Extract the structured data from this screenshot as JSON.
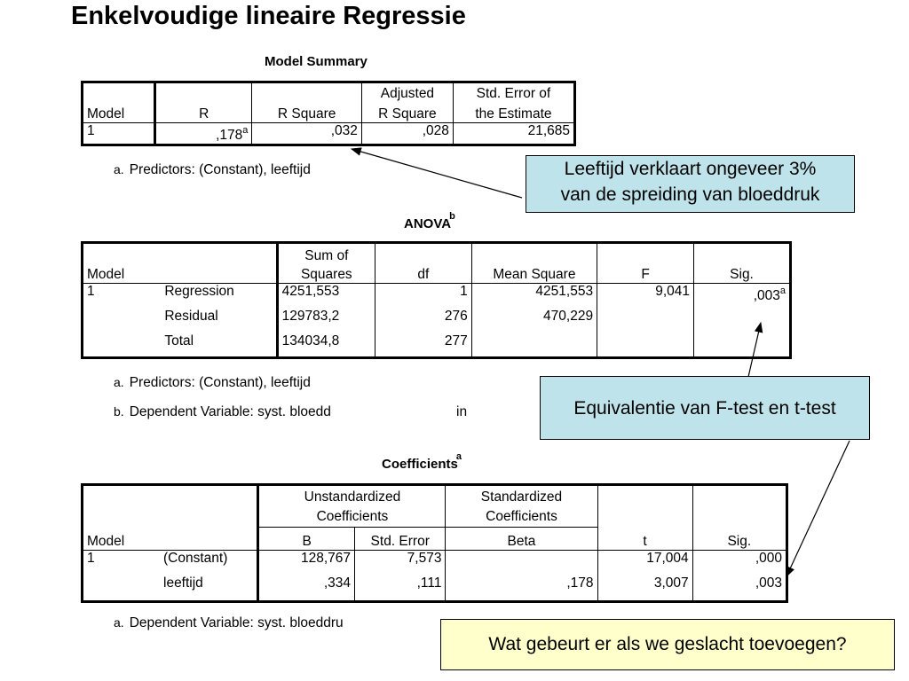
{
  "title": "Enkelvoudige lineaire Regressie",
  "model_summary": {
    "title": "Model Summary",
    "headers": [
      "Model",
      "R",
      "R Square",
      "Adjusted R Square",
      "Std. Error of the Estimate"
    ],
    "header_top": [
      "",
      "",
      "",
      "Adjusted",
      "Std. Error of"
    ],
    "header_bottom": [
      "Model",
      "R",
      "R Square",
      "R Square",
      "the Estimate"
    ],
    "row": {
      "model": "1",
      "r": ",178",
      "r_sup": "a",
      "r_square": ",032",
      "adj_r_square": ",028",
      "std_error": "21,685"
    },
    "note_label": "a.",
    "note_text": "Predictors: (Constant), leeftijd"
  },
  "anova": {
    "title": "ANOVA",
    "title_sup": "b",
    "header_top": [
      "",
      "",
      "Sum of",
      "",
      "",
      "",
      ""
    ],
    "header_bottom": [
      "Model",
      "",
      "Squares",
      "df",
      "Mean Square",
      "F",
      "Sig."
    ],
    "rows": [
      {
        "model": "1",
        "source": "Regression",
        "ss": "4251,553",
        "df": "1",
        "ms": "4251,553",
        "f": "9,041",
        "sig": ",003",
        "sig_sup": "a"
      },
      {
        "model": "",
        "source": "Residual",
        "ss": "129783,2",
        "df": "276",
        "ms": "470,229",
        "f": "",
        "sig": "",
        "sig_sup": ""
      },
      {
        "model": "",
        "source": "Total",
        "ss": "134034,8",
        "df": "277",
        "ms": "",
        "f": "",
        "sig": "",
        "sig_sup": ""
      }
    ],
    "notes": [
      {
        "label": "a.",
        "text": "Predictors: (Constant), leeftijd"
      },
      {
        "label": "b.",
        "text": "Dependent Variable: syst. bloedd"
      }
    ],
    "note_b_tail": "in"
  },
  "coefficients": {
    "title": "Coefficients",
    "title_sup": "a",
    "group_unstd": "Unstandardized Coefficients",
    "group_std": "Standardized Coefficients",
    "group_unstd_lines": [
      "Unstandardized",
      "Coefficients"
    ],
    "group_std_lines": [
      "Standardized",
      "Coefficients"
    ],
    "header_bottom": [
      "Model",
      "",
      "B",
      "Std. Error",
      "Beta",
      "t",
      "Sig."
    ],
    "rows": [
      {
        "model": "1",
        "term": "(Constant)",
        "b": "128,767",
        "se": "7,573",
        "beta": "",
        "t": "17,004",
        "sig": ",000"
      },
      {
        "model": "",
        "term": "leeftijd",
        "b": ",334",
        "se": ",111",
        "beta": ",178",
        "t": "3,007",
        "sig": ",003"
      }
    ],
    "note_label": "a.",
    "note_text": "Dependent Variable: syst. bloeddru"
  },
  "callouts": {
    "r_square": [
      "Leeftijd verklaart ongeveer 3%",
      "van de spreiding van bloeddruk"
    ],
    "equivalence": "Equivalentie van F-test en t-test",
    "question": "Wat gebeurt er als we geslacht toevoegen?"
  },
  "colors": {
    "callout_blue": "#bfe3ea",
    "callout_yellow": "#ffffcc"
  }
}
